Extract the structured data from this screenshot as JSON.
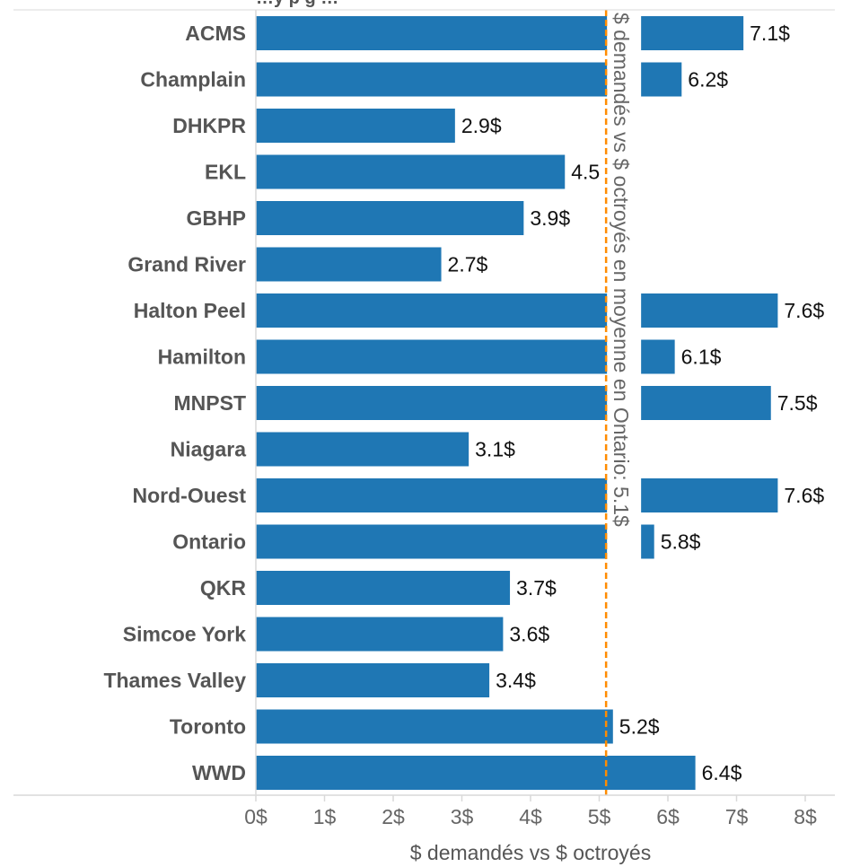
{
  "chart_data": {
    "type": "bar",
    "orientation": "horizontal",
    "title_fragment": "…y p    g  …",
    "categories": [
      "ACMS",
      "Champlain",
      "DHKPR",
      "EKL",
      "GBHP",
      "Grand River",
      "Halton Peel",
      "Hamilton",
      "MNPST",
      "Niagara",
      "Nord-Ouest",
      "Ontario",
      "QKR",
      "Simcoe York",
      "Thames Valley",
      "Toronto",
      "WWD"
    ],
    "values": [
      7.1,
      6.2,
      2.9,
      4.5,
      3.9,
      2.7,
      7.6,
      6.1,
      7.5,
      3.1,
      7.6,
      5.8,
      3.7,
      3.6,
      3.4,
      5.2,
      6.4
    ],
    "data_labels": [
      "7.1$",
      "6.2$",
      "2.9$",
      "4.5",
      "3.9$",
      "2.7$",
      "7.6$",
      "6.1$",
      "7.5$",
      "3.1$",
      "7.6$",
      "5.8$",
      "3.7$",
      "3.6$",
      "3.4$",
      "5.2$",
      "6.4$"
    ],
    "xlabel": "$ demandés vs $ octroyés",
    "ylabel": "",
    "xlim": [
      0,
      8
    ],
    "x_ticks": [
      "0$",
      "1$",
      "2$",
      "3$",
      "4$",
      "5$",
      "6$",
      "7$",
      "8$"
    ],
    "grid": false,
    "reference_line": {
      "value": 5.1,
      "label": "$ demandés vs $ octroyés en moyenne en Ontario: 5.1$",
      "style": "dashed"
    },
    "colors": {
      "bar": "#1f77b4",
      "reference_line": "#ff8c00",
      "axis": "#d9d9d9",
      "category_text": "#555555",
      "value_text": "#111111"
    }
  }
}
